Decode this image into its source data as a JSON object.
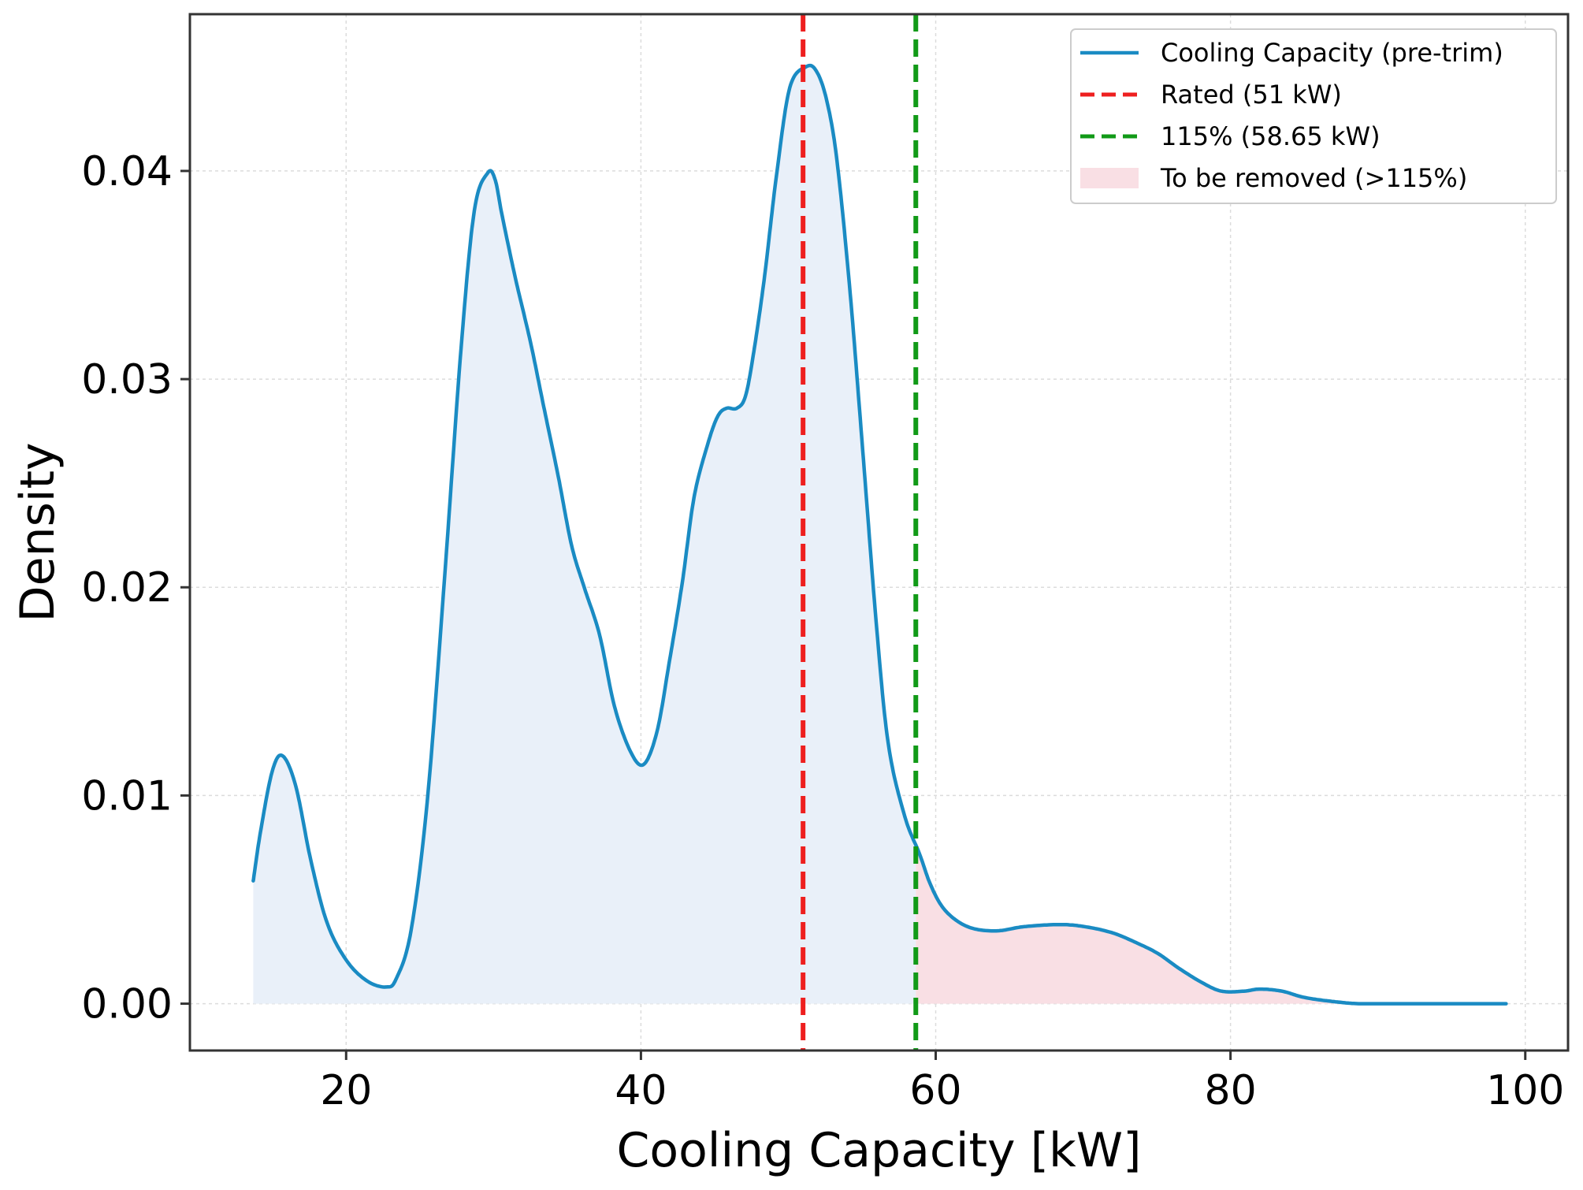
{
  "chart_data": {
    "type": "line",
    "title": "",
    "xlabel": "Cooling Capacity [kW]",
    "ylabel": "Density",
    "xlim": [
      9.4,
      102.9
    ],
    "ylim": [
      -0.00225,
      0.04753
    ],
    "xticks": [
      20,
      40,
      60,
      80,
      100
    ],
    "yticks": [
      0.0,
      0.01,
      0.02,
      0.03,
      0.04
    ],
    "xtick_labels": [
      "20",
      "40",
      "60",
      "80",
      "100"
    ],
    "ytick_labels": [
      "0.00",
      "0.01",
      "0.02",
      "0.03",
      "0.04"
    ],
    "grid": true,
    "legend_position": "top-right",
    "colors": {
      "curve": "#1a8bc3",
      "fill_kept": "#e9f0f9",
      "fill_removed": "#f9dfe4",
      "rated": "#ee1f1f",
      "threshold": "#119a17",
      "grid": "#dcdcdc"
    },
    "series": [
      {
        "name": "Cooling Capacity (pre-trim)",
        "x": [
          13.7,
          14.2,
          15.0,
          15.7,
          16.6,
          17.6,
          18.7,
          20.0,
          21.4,
          22.7,
          23.4,
          24.4,
          25.5,
          26.6,
          27.8,
          28.7,
          29.6,
          30.1,
          30.6,
          31.5,
          32.5,
          33.4,
          34.4,
          35.3,
          36.2,
          37.2,
          38.2,
          39.3,
          40.2,
          41.1,
          41.9,
          42.8,
          43.6,
          44.5,
          45.2,
          45.8,
          46.5,
          47.1,
          47.7,
          48.4,
          49.2,
          50.1,
          51.2,
          51.9,
          52.6,
          53.3,
          54.2,
          55.1,
          56.0,
          56.8,
          57.9,
          58.9,
          59.6,
          60.4,
          61.4,
          62.6,
          64.2,
          66.0,
          68.4,
          70.1,
          72.0,
          73.7,
          75.1,
          76.5,
          78.1,
          79.4,
          80.9,
          82.0,
          83.5,
          85.0,
          87.0,
          88.7,
          90.9,
          93.0,
          95.1,
          97.0,
          98.7
        ],
        "y": [
          0.0059,
          0.0083,
          0.0112,
          0.0119,
          0.0104,
          0.0069,
          0.0039,
          0.0021,
          0.0011,
          0.0008,
          0.0012,
          0.0035,
          0.0097,
          0.0197,
          0.0315,
          0.0381,
          0.0399,
          0.0396,
          0.0378,
          0.0348,
          0.0318,
          0.0287,
          0.0253,
          0.022,
          0.0199,
          0.0177,
          0.0143,
          0.0121,
          0.0115,
          0.0131,
          0.0163,
          0.0202,
          0.0243,
          0.0268,
          0.0282,
          0.0286,
          0.0286,
          0.0292,
          0.0315,
          0.035,
          0.0398,
          0.044,
          0.045,
          0.0448,
          0.0434,
          0.0405,
          0.0341,
          0.0261,
          0.018,
          0.0124,
          0.009,
          0.0072,
          0.0058,
          0.0047,
          0.004,
          0.0036,
          0.0035,
          0.0037,
          0.0038,
          0.0037,
          0.0034,
          0.0029,
          0.0024,
          0.0017,
          0.001,
          0.0006,
          0.0006,
          0.0007,
          0.0006,
          0.0003,
          0.0001,
          0.0,
          0.0,
          0.0,
          0.0,
          0.0,
          0.0
        ]
      }
    ],
    "reference_lines": [
      {
        "name": "Rated (51 kW)",
        "x": 51,
        "style": "dashed"
      },
      {
        "name": "115% (58.65 kW)",
        "x": 58.65,
        "style": "dashed"
      }
    ],
    "shaded_regions": [
      {
        "name": "",
        "from": 13.7,
        "to": 58.65
      },
      {
        "name": "To be removed (>115%)",
        "from": 58.65,
        "to": 98.7
      }
    ],
    "legend": [
      {
        "label": "Cooling Capacity (pre-trim)",
        "kind": "line"
      },
      {
        "label": "Rated (51 kW)",
        "kind": "dashed-red"
      },
      {
        "label": "115% (58.65 kW)",
        "kind": "dashed-green"
      },
      {
        "label": "To be removed (>115%)",
        "kind": "patch"
      }
    ]
  }
}
